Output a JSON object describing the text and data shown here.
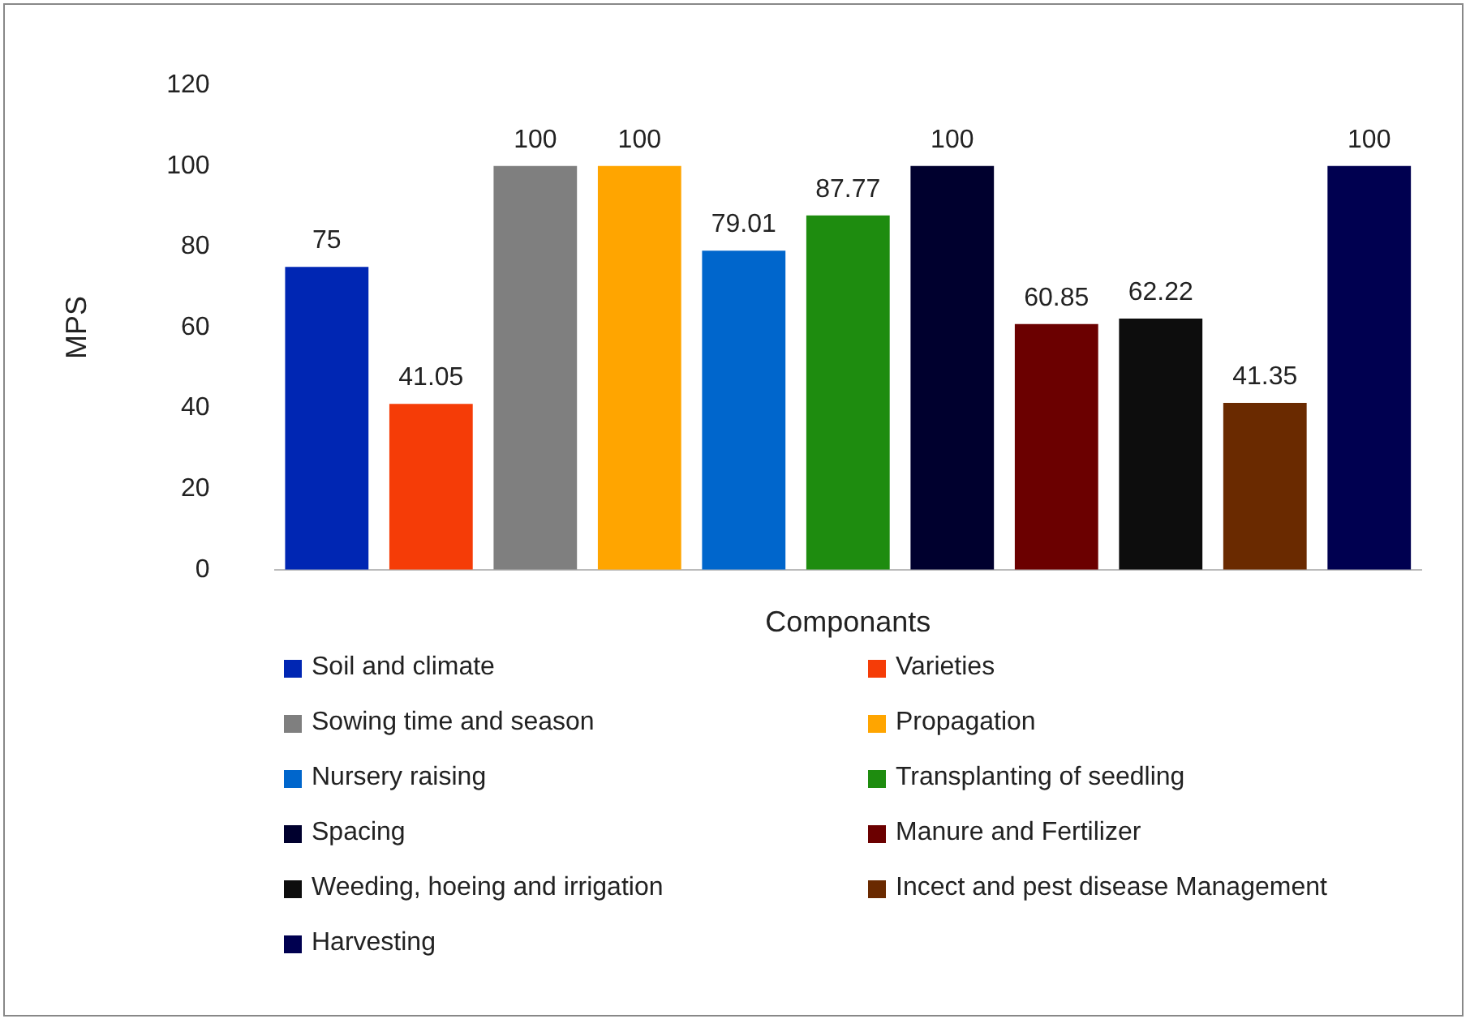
{
  "chart_data": {
    "type": "bar",
    "xlabel": "Componants",
    "ylabel": "MPS",
    "categories": [
      null,
      null,
      null,
      null,
      null,
      null,
      null,
      null,
      null,
      null,
      null
    ],
    "ylim": [
      0,
      120
    ],
    "yticks": [
      0,
      20,
      40,
      60,
      80,
      100,
      120
    ],
    "grid": false,
    "legend": "bottom",
    "data_labels": true,
    "series": [
      {
        "name": "Soil and climate",
        "color": "#0026b3",
        "values": [
          75,
          null,
          null,
          null,
          null,
          null,
          null,
          null,
          null,
          null,
          null
        ]
      },
      {
        "name": "Varieties",
        "color": "#f53c07",
        "values": [
          null,
          41.05,
          null,
          null,
          null,
          null,
          null,
          null,
          null,
          null,
          null
        ]
      },
      {
        "name": "Sowing time and season",
        "color": "#7f7f7f",
        "values": [
          null,
          null,
          100,
          null,
          null,
          null,
          null,
          null,
          null,
          null,
          null
        ]
      },
      {
        "name": "Propagation",
        "color": "#ffa500",
        "values": [
          null,
          null,
          null,
          100,
          null,
          null,
          null,
          null,
          null,
          null,
          null
        ]
      },
      {
        "name": "Nursery raising",
        "color": "#0066cc",
        "values": [
          null,
          null,
          null,
          null,
          79.01,
          null,
          null,
          null,
          null,
          null,
          null
        ]
      },
      {
        "name": "Transplanting of seedling",
        "color": "#1e8c0f",
        "values": [
          null,
          null,
          null,
          null,
          null,
          87.77,
          null,
          null,
          null,
          null,
          null
        ]
      },
      {
        "name": "Spacing",
        "color": "#00002e",
        "values": [
          null,
          null,
          null,
          null,
          null,
          null,
          100,
          null,
          null,
          null,
          null
        ]
      },
      {
        "name": "Manure and Fertilizer",
        "color": "#6b0000",
        "values": [
          null,
          null,
          null,
          null,
          null,
          null,
          null,
          60.85,
          null,
          null,
          null
        ]
      },
      {
        "name": "Weeding, hoeing and irrigation",
        "color": "#0d0d0d",
        "values": [
          null,
          null,
          null,
          null,
          null,
          null,
          null,
          null,
          62.22,
          null,
          null
        ]
      },
      {
        "name": "Incect and pest disease Management",
        "color": "#6a2a00",
        "values": [
          null,
          null,
          null,
          null,
          null,
          null,
          null,
          null,
          null,
          41.35,
          null
        ]
      },
      {
        "name": "Harvesting",
        "color": "#000050",
        "values": [
          null,
          null,
          null,
          null,
          null,
          null,
          null,
          null,
          null,
          null,
          100
        ]
      }
    ]
  }
}
